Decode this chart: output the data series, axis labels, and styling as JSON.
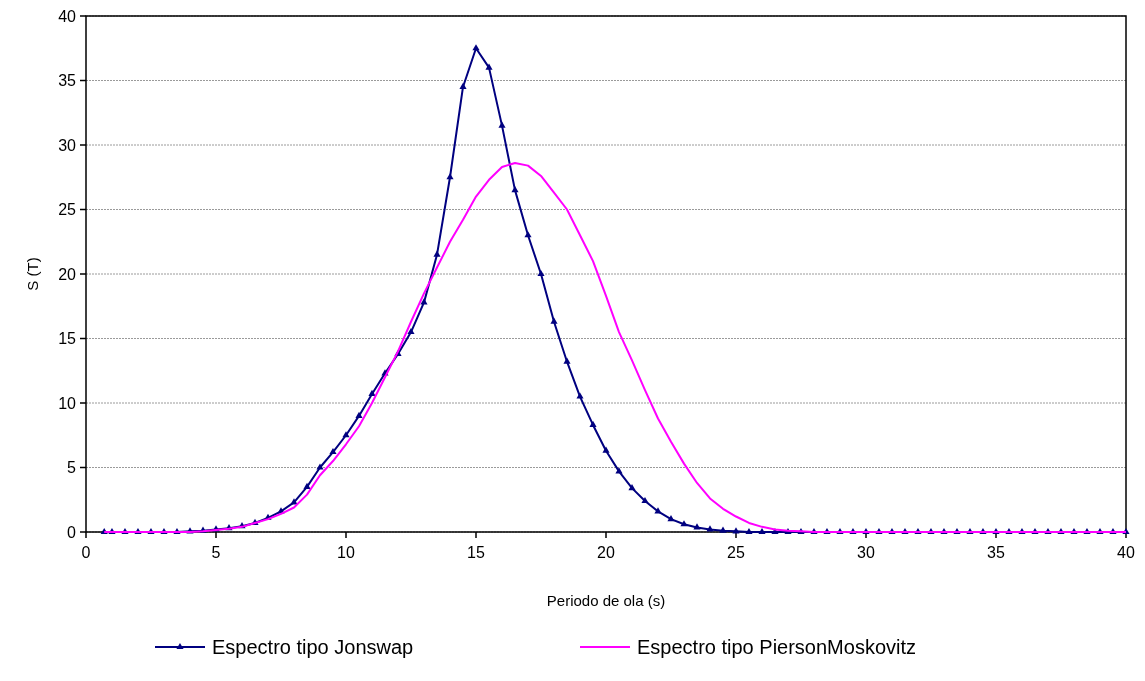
{
  "chart_data": {
    "type": "line",
    "xlabel": "Periodo de ola (s)",
    "ylabel": "S (T)",
    "x": [
      0.7,
      1,
      1.5,
      2,
      2.5,
      3,
      3.5,
      4,
      4.5,
      5,
      5.5,
      6,
      6.5,
      7,
      7.5,
      8,
      8.5,
      9,
      9.5,
      10,
      10.5,
      11,
      11.5,
      12,
      12.5,
      13,
      13.5,
      14,
      14.5,
      15,
      15.5,
      16,
      16.5,
      17,
      17.5,
      18,
      18.5,
      19,
      19.5,
      20,
      20.5,
      21,
      21.5,
      22,
      22.5,
      23,
      23.5,
      24,
      24.5,
      25,
      25.5,
      26,
      26.5,
      27,
      27.5,
      28,
      28.5,
      29,
      29.5,
      30,
      30.5,
      31,
      31.5,
      32,
      32.5,
      33,
      33.5,
      34,
      34.5,
      35,
      35.5,
      36,
      36.5,
      37,
      37.5,
      38,
      38.5,
      39,
      39.5,
      40
    ],
    "series": [
      {
        "name": "Espectro tipo Jonswap",
        "color": "#000080",
        "marker": "triangle",
        "values": [
          0,
          0,
          0,
          0,
          0,
          0,
          0,
          0.05,
          0.1,
          0.2,
          0.3,
          0.45,
          0.7,
          1.1,
          1.6,
          2.3,
          3.5,
          5,
          6.2,
          7.5,
          9,
          10.7,
          12.3,
          13.8,
          15.5,
          17.8,
          21.5,
          27.5,
          34.5,
          37.5,
          36,
          31.5,
          26.5,
          23,
          20,
          16.3,
          13.2,
          10.5,
          8.3,
          6.3,
          4.7,
          3.4,
          2.4,
          1.6,
          1,
          0.6,
          0.35,
          0.2,
          0.1,
          0.05,
          0,
          0,
          0,
          0,
          0,
          0,
          0,
          0,
          0,
          0,
          0,
          0,
          0,
          0,
          0,
          0,
          0,
          0,
          0,
          0,
          0,
          0,
          0,
          0,
          0,
          0,
          0,
          0,
          0,
          0
        ]
      },
      {
        "name": "Espectro tipo PiersonMoskovitz",
        "color": "#ff00ff",
        "marker": "none",
        "values": [
          0,
          0,
          0,
          0,
          0,
          0,
          0,
          0,
          0.05,
          0.15,
          0.25,
          0.4,
          0.7,
          1,
          1.4,
          1.9,
          2.9,
          4.4,
          5.5,
          6.8,
          8.2,
          10,
          12,
          14,
          16.3,
          18.5,
          20.5,
          22.5,
          24.2,
          26,
          27.3,
          28.3,
          28.6,
          28.4,
          27.6,
          26.3,
          25,
          23,
          21,
          18.3,
          15.5,
          13.3,
          11,
          8.8,
          7,
          5.3,
          3.8,
          2.6,
          1.8,
          1.2,
          0.7,
          0.4,
          0.2,
          0.1,
          0.05,
          0,
          0,
          0,
          0,
          0,
          0,
          0,
          0,
          0,
          0,
          0,
          0,
          0,
          0,
          0,
          0,
          0,
          0,
          0,
          0,
          0,
          0,
          0,
          0,
          0
        ]
      }
    ],
    "xlim": [
      0,
      40
    ],
    "xticks": [
      0,
      5,
      10,
      15,
      20,
      25,
      30,
      35,
      40
    ],
    "ylim": [
      0,
      40
    ],
    "yticks": [
      0,
      5,
      10,
      15,
      20,
      25,
      30,
      35,
      40
    ],
    "grid": "y",
    "legend": "bottom"
  }
}
